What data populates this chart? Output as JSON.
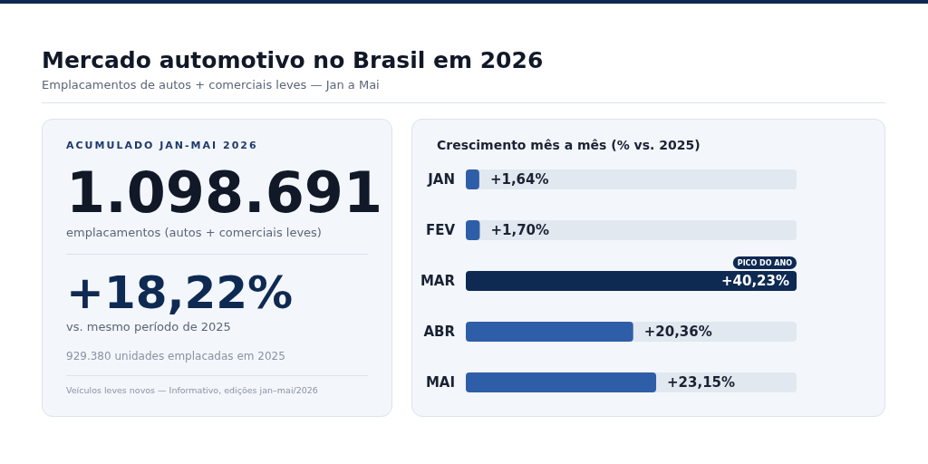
{
  "chart_data": [
    {
      "type": "other",
      "title": "Mercado automotivo no Brasil em 2026",
      "subtitle": "Emplacamentos de autos + comerciais leves — Jan a Mai",
      "annotations": [
        "ACUMULADO JAN-MAI 2026",
        "1.098.691",
        "emplacamentos (autos + comerciais leves)",
        "+18,22%",
        "vs. mesmo período de 2025",
        "929.380 unidades emplacadas em 2025",
        "Veículos leves novos — Informativo, edições jan–mai/2026"
      ]
    },
    {
      "type": "bar",
      "orientation": "horizontal",
      "title": "Crescimento mês a mês (% vs. 2025)",
      "categories": [
        "JAN",
        "FEV",
        "MAR",
        "ABR",
        "MAI"
      ],
      "values": [
        1.64,
        1.7,
        40.23,
        20.36,
        23.15
      ],
      "value_labels": [
        "+1,64%",
        "+1,70%",
        "+40,23%",
        "+20,36%",
        "+23,15%"
      ],
      "colors": [
        "#2f5ea8",
        "#2f5ea8",
        "#0f2a52",
        "#2f5ea8",
        "#2f5ea8"
      ],
      "annotations": [
        {
          "text": "PICO DO ANO",
          "x": 40.23,
          "y": "MAR"
        }
      ]
    }
  ]
}
